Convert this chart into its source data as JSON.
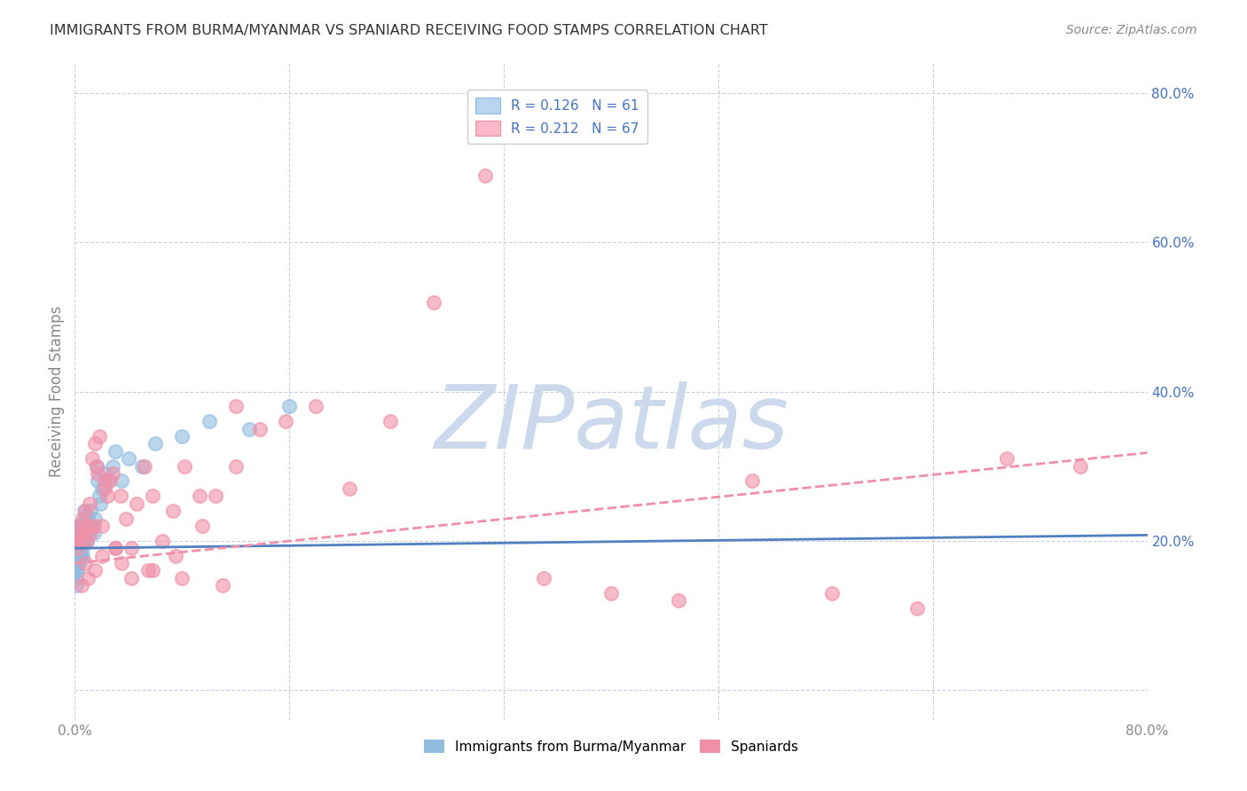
{
  "title": "IMMIGRANTS FROM BURMA/MYANMAR VS SPANIARD RECEIVING FOOD STAMPS CORRELATION CHART",
  "source": "Source: ZipAtlas.com",
  "ylabel": "Receiving Food Stamps",
  "xlabel": "",
  "right_ytick_labels": [
    "20.0%",
    "40.0%",
    "60.0%",
    "80.0%"
  ],
  "right_ytick_values": [
    0.2,
    0.4,
    0.6,
    0.8
  ],
  "xlim": [
    0.0,
    0.8
  ],
  "ylim": [
    -0.04,
    0.84
  ],
  "watermark": "ZIPatlas",
  "watermark_color": "#ccd8ec",
  "series1_color": "#90bce0",
  "series2_color": "#f090a8",
  "trend1_color": "#5080c0",
  "trend2_color": "#e05878",
  "background_color": "#ffffff",
  "grid_color": "#c8d0dc",
  "title_color": "#333333",
  "blue_text_color": "#4472c4",
  "tick_color": "#888888",
  "trend1_intercept": 0.19,
  "trend1_slope": 0.022,
  "trend2_intercept": 0.17,
  "trend2_slope": 0.185,
  "series1_x": [
    0.001,
    0.001,
    0.001,
    0.001,
    0.001,
    0.001,
    0.001,
    0.001,
    0.002,
    0.002,
    0.002,
    0.002,
    0.002,
    0.002,
    0.003,
    0.003,
    0.003,
    0.003,
    0.003,
    0.004,
    0.004,
    0.004,
    0.004,
    0.005,
    0.005,
    0.005,
    0.005,
    0.006,
    0.006,
    0.006,
    0.007,
    0.007,
    0.007,
    0.008,
    0.008,
    0.009,
    0.009,
    0.01,
    0.01,
    0.011,
    0.012,
    0.013,
    0.014,
    0.015,
    0.016,
    0.017,
    0.018,
    0.019,
    0.02,
    0.022,
    0.025,
    0.028,
    0.03,
    0.035,
    0.04,
    0.05,
    0.06,
    0.08,
    0.1,
    0.13,
    0.16
  ],
  "series1_y": [
    0.19,
    0.17,
    0.2,
    0.18,
    0.16,
    0.21,
    0.15,
    0.14,
    0.18,
    0.2,
    0.17,
    0.19,
    0.16,
    0.22,
    0.19,
    0.17,
    0.21,
    0.18,
    0.2,
    0.2,
    0.18,
    0.22,
    0.19,
    0.2,
    0.18,
    0.21,
    0.22,
    0.19,
    0.21,
    0.18,
    0.22,
    0.24,
    0.2,
    0.21,
    0.23,
    0.2,
    0.22,
    0.23,
    0.21,
    0.22,
    0.24,
    0.22,
    0.21,
    0.23,
    0.3,
    0.28,
    0.26,
    0.25,
    0.27,
    0.29,
    0.28,
    0.3,
    0.32,
    0.28,
    0.31,
    0.3,
    0.33,
    0.34,
    0.36,
    0.35,
    0.38
  ],
  "series2_x": [
    0.001,
    0.002,
    0.003,
    0.004,
    0.005,
    0.006,
    0.007,
    0.008,
    0.009,
    0.01,
    0.011,
    0.012,
    0.013,
    0.014,
    0.015,
    0.016,
    0.017,
    0.018,
    0.02,
    0.022,
    0.024,
    0.026,
    0.028,
    0.03,
    0.034,
    0.038,
    0.042,
    0.046,
    0.052,
    0.058,
    0.065,
    0.073,
    0.082,
    0.093,
    0.105,
    0.12,
    0.138,
    0.157,
    0.18,
    0.205,
    0.235,
    0.268,
    0.306,
    0.35,
    0.4,
    0.45,
    0.505,
    0.565,
    0.628,
    0.695,
    0.75,
    0.008,
    0.015,
    0.022,
    0.03,
    0.042,
    0.058,
    0.075,
    0.095,
    0.12,
    0.005,
    0.01,
    0.02,
    0.035,
    0.055,
    0.08,
    0.11
  ],
  "series2_y": [
    0.2,
    0.19,
    0.21,
    0.22,
    0.2,
    0.23,
    0.21,
    0.24,
    0.2,
    0.22,
    0.25,
    0.21,
    0.31,
    0.22,
    0.33,
    0.3,
    0.29,
    0.34,
    0.22,
    0.27,
    0.26,
    0.28,
    0.29,
    0.19,
    0.26,
    0.23,
    0.19,
    0.25,
    0.3,
    0.26,
    0.2,
    0.24,
    0.3,
    0.26,
    0.26,
    0.3,
    0.35,
    0.36,
    0.38,
    0.27,
    0.36,
    0.52,
    0.69,
    0.15,
    0.13,
    0.12,
    0.28,
    0.13,
    0.11,
    0.31,
    0.3,
    0.17,
    0.16,
    0.28,
    0.19,
    0.15,
    0.16,
    0.18,
    0.22,
    0.38,
    0.14,
    0.15,
    0.18,
    0.17,
    0.16,
    0.15,
    0.14
  ]
}
